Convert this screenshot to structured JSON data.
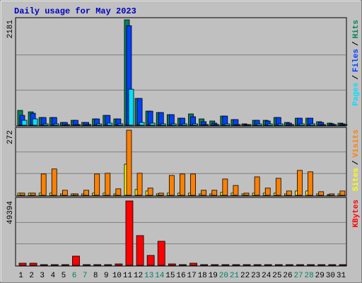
{
  "title": "Daily usage for May 2023",
  "legend_separator": "/",
  "chart_data": [
    {
      "type": "bar",
      "legend_reversed": true,
      "ylim": [
        0,
        2181
      ],
      "yticks": [
        2181
      ],
      "grid_lines": [
        727,
        1454
      ],
      "series": [
        {
          "name": "Hits",
          "color": "#00805c",
          "values": [
            307,
            277,
            160,
            160,
            58,
            102,
            58,
            131,
            204,
            131,
            2181,
            555,
            292,
            263,
            219,
            146,
            234,
            131,
            88,
            190,
            117,
            29,
            102,
            102,
            160,
            58,
            146,
            146,
            73,
            44,
            44
          ]
        },
        {
          "name": "Files",
          "color": "#0040ff",
          "values": [
            204,
            248,
            160,
            160,
            58,
            102,
            58,
            131,
            204,
            131,
            2059,
            555,
            292,
            263,
            219,
            146,
            175,
            73,
            44,
            190,
            117,
            15,
            102,
            88,
            160,
            44,
            146,
            146,
            58,
            29,
            29
          ]
        },
        {
          "name": "Pages",
          "color": "#00e0ff",
          "values": [
            102,
            131,
            29,
            29,
            15,
            15,
            15,
            29,
            44,
            29,
            745,
            58,
            44,
            29,
            29,
            29,
            29,
            15,
            15,
            29,
            15,
            15,
            29,
            29,
            29,
            15,
            29,
            29,
            15,
            15,
            15
          ]
        }
      ]
    },
    {
      "type": "bar",
      "legend_reversed": false,
      "ylim": [
        0,
        272
      ],
      "yticks": [
        272
      ],
      "grid_lines": [
        91,
        181
      ],
      "series": [
        {
          "name": "Sites",
          "color": "#ffff00",
          "values": [
            9,
            9,
            9,
            9,
            6,
            6,
            6,
            9,
            9,
            6,
            130,
            24,
            18,
            6,
            9,
            9,
            9,
            6,
            6,
            12,
            9,
            6,
            9,
            9,
            9,
            6,
            18,
            18,
            6,
            3,
            6
          ]
        },
        {
          "name": "Visits",
          "color": "#ff8000",
          "values": [
            9,
            9,
            89,
            110,
            21,
            6,
            21,
            89,
            92,
            27,
            272,
            92,
            30,
            9,
            83,
            89,
            89,
            21,
            21,
            68,
            41,
            9,
            77,
            30,
            71,
            18,
            104,
            98,
            15,
            6,
            18
          ]
        }
      ]
    },
    {
      "type": "bar",
      "legend_reversed": false,
      "ylim": [
        0,
        49394
      ],
      "yticks": [
        49394
      ],
      "grid_lines": [
        16465,
        32929
      ],
      "categories": [
        "1",
        "2",
        "3",
        "4",
        "5",
        "6",
        "7",
        "8",
        "9",
        "10",
        "11",
        "12",
        "13",
        "14",
        "15",
        "16",
        "17",
        "18",
        "19",
        "20",
        "21",
        "22",
        "23",
        "24",
        "25",
        "26",
        "27",
        "28",
        "29",
        "30",
        "31"
      ],
      "weekend_categories": [
        "6",
        "7",
        "13",
        "14",
        "20",
        "21",
        "27",
        "28"
      ],
      "weekend_color": "#008060",
      "series": [
        {
          "name": "KBytes",
          "color": "#ff0000",
          "values": [
            1629,
            1629,
            543,
            543,
            543,
            7059,
            543,
            543,
            543,
            1086,
            49394,
            22806,
            7602,
            18462,
            1086,
            543,
            1629,
            543,
            543,
            543,
            543,
            543,
            543,
            543,
            543,
            543,
            543,
            543,
            543,
            543,
            543
          ]
        }
      ]
    }
  ]
}
